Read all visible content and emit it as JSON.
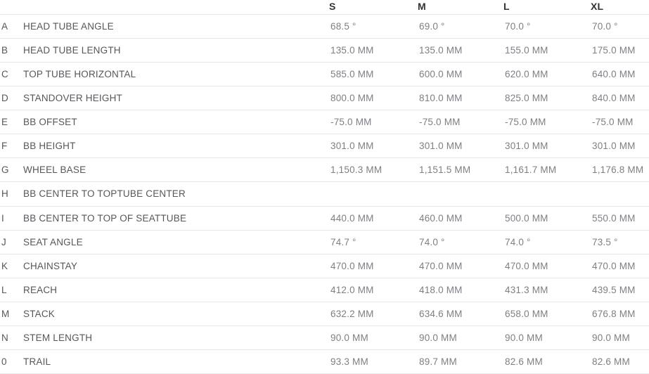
{
  "table": {
    "title": "bike-geometry-table",
    "columns": [
      "S",
      "M",
      "L",
      "XL"
    ],
    "rows": [
      {
        "letter": "A",
        "label": "HEAD TUBE ANGLE",
        "values": [
          "68.5 °",
          "69.0 °",
          "70.0 °",
          "70.0 °"
        ]
      },
      {
        "letter": "B",
        "label": "HEAD TUBE LENGTH",
        "values": [
          "135.0 MM",
          "135.0 MM",
          "155.0 MM",
          "175.0 MM"
        ]
      },
      {
        "letter": "C",
        "label": "TOP TUBE HORIZONTAL",
        "values": [
          "585.0 MM",
          "600.0 MM",
          "620.0 MM",
          "640.0 MM"
        ]
      },
      {
        "letter": "D",
        "label": "STANDOVER HEIGHT",
        "values": [
          "800.0 MM",
          "810.0 MM",
          "825.0 MM",
          "840.0 MM"
        ]
      },
      {
        "letter": "E",
        "label": "BB OFFSET",
        "values": [
          "-75.0 MM",
          "-75.0 MM",
          "-75.0 MM",
          "-75.0 MM"
        ]
      },
      {
        "letter": "F",
        "label": "BB HEIGHT",
        "values": [
          "301.0 MM",
          "301.0 MM",
          "301.0 MM",
          "301.0 MM"
        ]
      },
      {
        "letter": "G",
        "label": "WHEEL BASE",
        "values": [
          "1,150.3 MM",
          "1,151.5 MM",
          "1,161.7 MM",
          "1,176.8 MM"
        ]
      },
      {
        "letter": "H",
        "label": "BB CENTER TO TOPTUBE CENTER",
        "values": [
          "",
          "",
          "",
          ""
        ]
      },
      {
        "letter": "I",
        "label": "BB CENTER TO TOP OF SEATTUBE",
        "values": [
          "440.0 MM",
          "460.0 MM",
          "500.0 MM",
          "550.0 MM"
        ]
      },
      {
        "letter": "J",
        "label": "SEAT ANGLE",
        "values": [
          "74.7 °",
          "74.0 °",
          "74.0 °",
          "73.5 °"
        ]
      },
      {
        "letter": "K",
        "label": "CHAINSTAY",
        "values": [
          "470.0 MM",
          "470.0 MM",
          "470.0 MM",
          "470.0 MM"
        ]
      },
      {
        "letter": "L",
        "label": "REACH",
        "values": [
          "412.0 MM",
          "418.0 MM",
          "431.3 MM",
          "439.5 MM"
        ]
      },
      {
        "letter": "M",
        "label": "STACK",
        "values": [
          "632.2 MM",
          "634.6 MM",
          "658.0 MM",
          "676.8 MM"
        ]
      },
      {
        "letter": "N",
        "label": "STEM LENGTH",
        "values": [
          "90.0 MM",
          "90.0 MM",
          "90.0 MM",
          "90.0 MM"
        ]
      },
      {
        "letter": "0",
        "label": "TRAIL",
        "values": [
          "93.3 MM",
          "89.7 MM",
          "82.6 MM",
          "82.6 MM"
        ]
      }
    ],
    "colors": {
      "header_text": "#2f3133",
      "label_text": "#54575b",
      "value_text": "#7c7f84",
      "divider": "#e7e7e7",
      "background": "#ffffff"
    }
  }
}
